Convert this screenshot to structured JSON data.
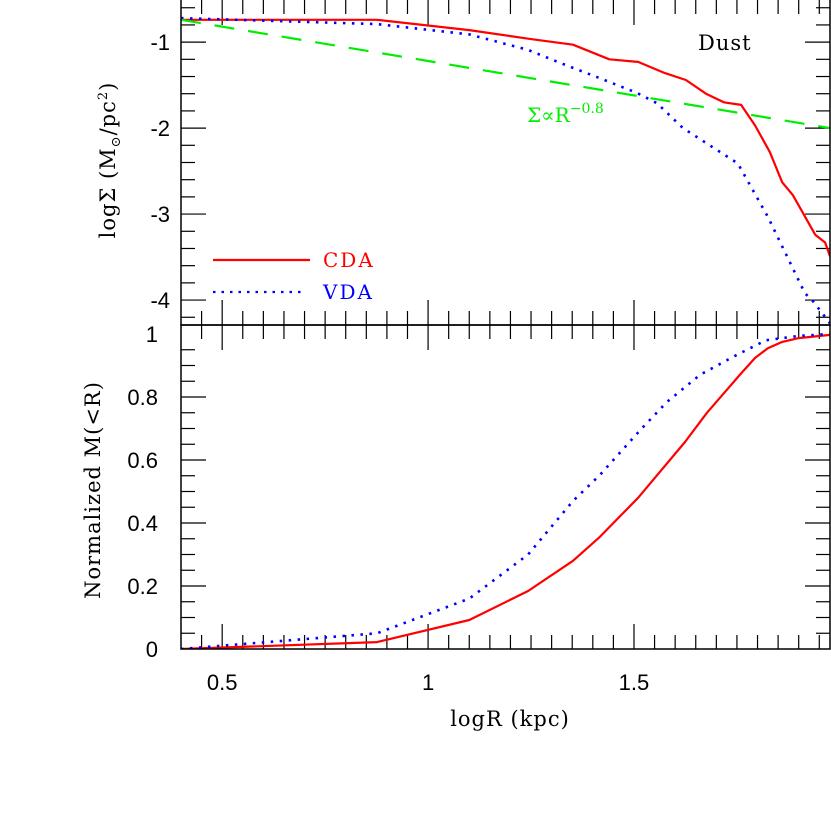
{
  "chart_data": [
    {
      "panel": "top",
      "type": "line",
      "title": "",
      "panel_label": "Dust",
      "xlabel": "logR (kpc)",
      "ylabel": "logΣ (M⊙/pc²)",
      "xlim": [
        0.4,
        1.976
      ],
      "ylim": [
        -4.29,
        -0.51
      ],
      "yticks": [
        -1,
        -2,
        -3,
        -4
      ],
      "ytick_labels": [
        "-1",
        "-2",
        "-3",
        "-4"
      ],
      "grid": false,
      "legend": {
        "position": "lower-left",
        "entries": [
          "CDA",
          "VDA"
        ]
      },
      "annotation": {
        "text": "Σ∝R",
        "superscript": "−0.8",
        "x": 1.63,
        "y": -1.94
      },
      "series": [
        {
          "name": "CDA",
          "color": "#ff0000",
          "style": "solid",
          "x": [
            0.4,
            0.876,
            1.1,
            1.243,
            1.352,
            1.44,
            1.51,
            1.575,
            1.626,
            1.675,
            1.718,
            1.76,
            1.794,
            1.83,
            1.86,
            1.886,
            1.94,
            1.964,
            1.976
          ],
          "y": [
            -0.74,
            -0.74,
            -0.86,
            -0.96,
            -1.03,
            -1.2,
            -1.23,
            -1.36,
            -1.44,
            -1.6,
            -1.7,
            -1.73,
            -1.97,
            -2.28,
            -2.63,
            -2.78,
            -3.24,
            -3.33,
            -3.49
          ]
        },
        {
          "name": "VDA",
          "color": "#0000ff",
          "style": "dotted",
          "x": [
            0.4,
            0.876,
            1.1,
            1.243,
            1.32,
            1.417,
            1.507,
            1.556,
            1.619,
            1.752,
            1.825,
            1.915,
            1.934,
            1.976
          ],
          "y": [
            -0.72,
            -0.79,
            -0.91,
            -1.09,
            -1.24,
            -1.42,
            -1.59,
            -1.71,
            -2.0,
            -2.41,
            -3.03,
            -3.92,
            -4.01,
            -4.27
          ]
        },
        {
          "name": "Σ∝R^-0.8 fit",
          "color": "#00ee00",
          "style": "dashed",
          "x": [
            0.4,
            1.976
          ],
          "y": [
            -0.74,
            -2.0
          ]
        }
      ]
    },
    {
      "panel": "bottom",
      "type": "line",
      "title": "",
      "xlabel": "logR (kpc)",
      "ylabel": "Normalized M(<R)",
      "xlim": [
        0.4,
        1.976
      ],
      "ylim": [
        0,
        1.0
      ],
      "xticks": [
        0.5,
        1,
        1.5
      ],
      "xtick_labels": [
        "0.5",
        "1",
        "1.5"
      ],
      "yticks": [
        0,
        0.2,
        0.4,
        0.6,
        0.8,
        1
      ],
      "ytick_labels": [
        "0",
        "0.2",
        "0.4",
        "0.6",
        "0.8",
        "1"
      ],
      "grid": false,
      "series": [
        {
          "name": "CDA",
          "color": "#ff0000",
          "style": "solid",
          "x": [
            0.4,
            0.876,
            1.1,
            1.243,
            1.352,
            1.417,
            1.51,
            1.624,
            1.677,
            1.757,
            1.794,
            1.825,
            1.86,
            1.9,
            1.976
          ],
          "y": [
            0.0,
            0.022,
            0.092,
            0.184,
            0.28,
            0.356,
            0.48,
            0.657,
            0.75,
            0.87,
            0.924,
            0.955,
            0.975,
            0.987,
            0.997
          ]
        },
        {
          "name": "VDA",
          "color": "#0000ff",
          "style": "dotted",
          "x": [
            0.4,
            0.876,
            1.1,
            1.243,
            1.352,
            1.417,
            1.515,
            1.58,
            1.66,
            1.74,
            1.82,
            1.9,
            1.976
          ],
          "y": [
            0.0,
            0.05,
            0.16,
            0.3,
            0.47,
            0.552,
            0.695,
            0.784,
            0.87,
            0.927,
            0.98,
            0.994,
            1.0
          ]
        }
      ]
    }
  ]
}
